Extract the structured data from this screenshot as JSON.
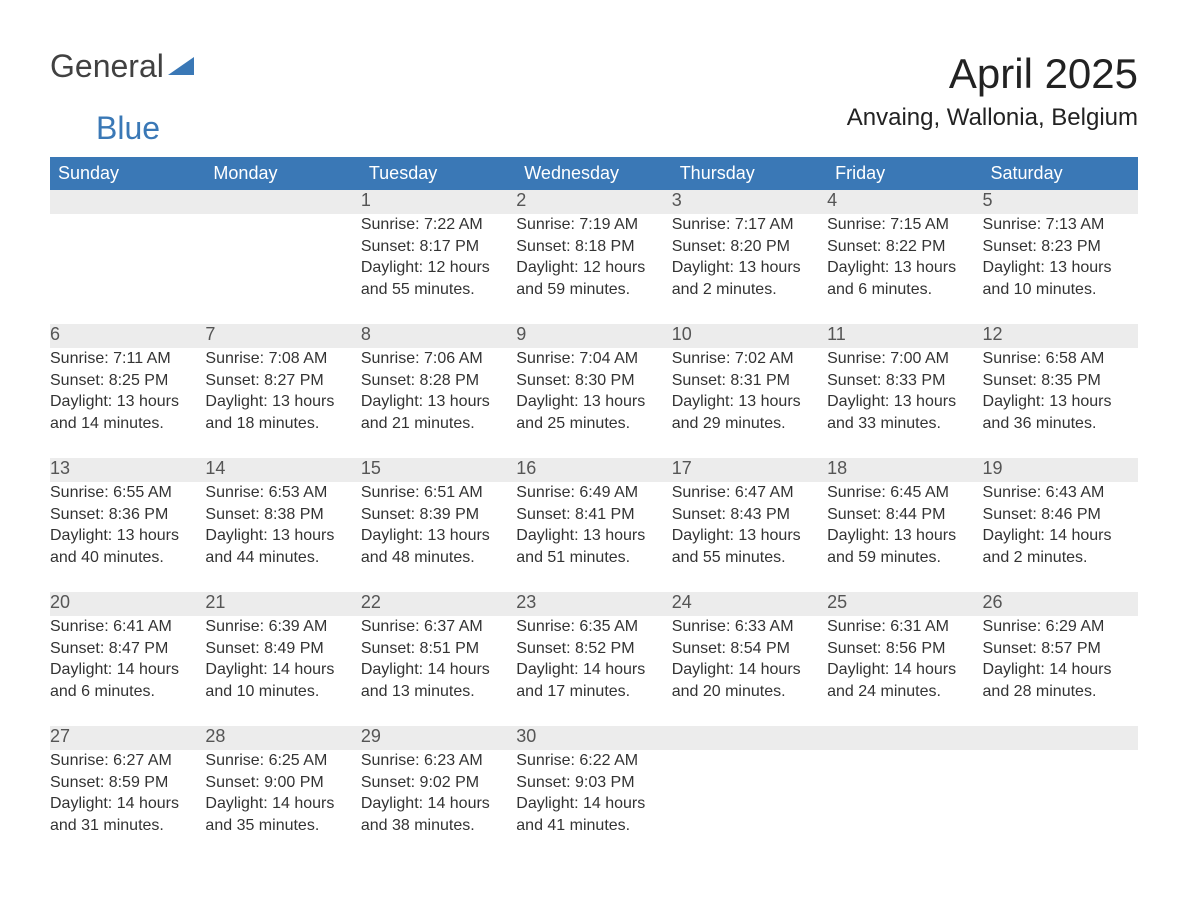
{
  "logo": {
    "word1": "General",
    "word2": "Blue",
    "tri_color": "#3a78b6"
  },
  "title": "April 2025",
  "location": "Anvaing, Wallonia, Belgium",
  "colors": {
    "header_bg": "#3a78b6",
    "header_text": "#ffffff",
    "daynum_bg": "#ececec",
    "body_text": "#333333",
    "rule": "#3a78b6"
  },
  "type": "calendar-table",
  "columns": [
    "Sunday",
    "Monday",
    "Tuesday",
    "Wednesday",
    "Thursday",
    "Friday",
    "Saturday"
  ],
  "weeks": [
    [
      null,
      null,
      {
        "n": "1",
        "sr": "7:22 AM",
        "ss": "8:17 PM",
        "dl": "12 hours and 55 minutes."
      },
      {
        "n": "2",
        "sr": "7:19 AM",
        "ss": "8:18 PM",
        "dl": "12 hours and 59 minutes."
      },
      {
        "n": "3",
        "sr": "7:17 AM",
        "ss": "8:20 PM",
        "dl": "13 hours and 2 minutes."
      },
      {
        "n": "4",
        "sr": "7:15 AM",
        "ss": "8:22 PM",
        "dl": "13 hours and 6 minutes."
      },
      {
        "n": "5",
        "sr": "7:13 AM",
        "ss": "8:23 PM",
        "dl": "13 hours and 10 minutes."
      }
    ],
    [
      {
        "n": "6",
        "sr": "7:11 AM",
        "ss": "8:25 PM",
        "dl": "13 hours and 14 minutes."
      },
      {
        "n": "7",
        "sr": "7:08 AM",
        "ss": "8:27 PM",
        "dl": "13 hours and 18 minutes."
      },
      {
        "n": "8",
        "sr": "7:06 AM",
        "ss": "8:28 PM",
        "dl": "13 hours and 21 minutes."
      },
      {
        "n": "9",
        "sr": "7:04 AM",
        "ss": "8:30 PM",
        "dl": "13 hours and 25 minutes."
      },
      {
        "n": "10",
        "sr": "7:02 AM",
        "ss": "8:31 PM",
        "dl": "13 hours and 29 minutes."
      },
      {
        "n": "11",
        "sr": "7:00 AM",
        "ss": "8:33 PM",
        "dl": "13 hours and 33 minutes."
      },
      {
        "n": "12",
        "sr": "6:58 AM",
        "ss": "8:35 PM",
        "dl": "13 hours and 36 minutes."
      }
    ],
    [
      {
        "n": "13",
        "sr": "6:55 AM",
        "ss": "8:36 PM",
        "dl": "13 hours and 40 minutes."
      },
      {
        "n": "14",
        "sr": "6:53 AM",
        "ss": "8:38 PM",
        "dl": "13 hours and 44 minutes."
      },
      {
        "n": "15",
        "sr": "6:51 AM",
        "ss": "8:39 PM",
        "dl": "13 hours and 48 minutes."
      },
      {
        "n": "16",
        "sr": "6:49 AM",
        "ss": "8:41 PM",
        "dl": "13 hours and 51 minutes."
      },
      {
        "n": "17",
        "sr": "6:47 AM",
        "ss": "8:43 PM",
        "dl": "13 hours and 55 minutes."
      },
      {
        "n": "18",
        "sr": "6:45 AM",
        "ss": "8:44 PM",
        "dl": "13 hours and 59 minutes."
      },
      {
        "n": "19",
        "sr": "6:43 AM",
        "ss": "8:46 PM",
        "dl": "14 hours and 2 minutes."
      }
    ],
    [
      {
        "n": "20",
        "sr": "6:41 AM",
        "ss": "8:47 PM",
        "dl": "14 hours and 6 minutes."
      },
      {
        "n": "21",
        "sr": "6:39 AM",
        "ss": "8:49 PM",
        "dl": "14 hours and 10 minutes."
      },
      {
        "n": "22",
        "sr": "6:37 AM",
        "ss": "8:51 PM",
        "dl": "14 hours and 13 minutes."
      },
      {
        "n": "23",
        "sr": "6:35 AM",
        "ss": "8:52 PM",
        "dl": "14 hours and 17 minutes."
      },
      {
        "n": "24",
        "sr": "6:33 AM",
        "ss": "8:54 PM",
        "dl": "14 hours and 20 minutes."
      },
      {
        "n": "25",
        "sr": "6:31 AM",
        "ss": "8:56 PM",
        "dl": "14 hours and 24 minutes."
      },
      {
        "n": "26",
        "sr": "6:29 AM",
        "ss": "8:57 PM",
        "dl": "14 hours and 28 minutes."
      }
    ],
    [
      {
        "n": "27",
        "sr": "6:27 AM",
        "ss": "8:59 PM",
        "dl": "14 hours and 31 minutes."
      },
      {
        "n": "28",
        "sr": "6:25 AM",
        "ss": "9:00 PM",
        "dl": "14 hours and 35 minutes."
      },
      {
        "n": "29",
        "sr": "6:23 AM",
        "ss": "9:02 PM",
        "dl": "14 hours and 38 minutes."
      },
      {
        "n": "30",
        "sr": "6:22 AM",
        "ss": "9:03 PM",
        "dl": "14 hours and 41 minutes."
      },
      null,
      null,
      null
    ]
  ],
  "labels": {
    "sunrise": "Sunrise: ",
    "sunset": "Sunset: ",
    "daylight": "Daylight: "
  }
}
